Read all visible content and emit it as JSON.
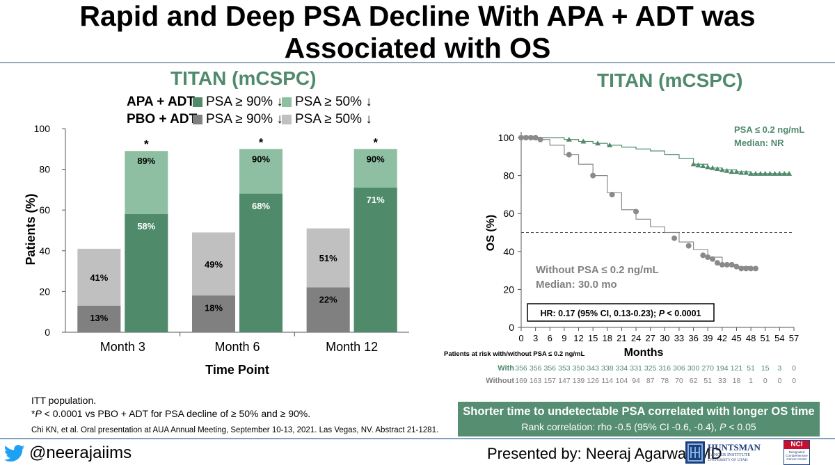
{
  "slide": {
    "title_line1": "Rapid and Deep PSA Decline With APA + ADT was",
    "title_line2": "Associated with OS",
    "left_panel_title": "TITAN (mCSPC)",
    "right_panel_title": "TITAN (mCSPC)",
    "footnote_line1": "ITT population.",
    "footnote_line2_prefix": "*",
    "footnote_line2_p": "P",
    "footnote_line2_rest": " < 0.0001 vs PBO + ADT for PSA decline of ≥ 50% and ≥ 90%.",
    "citation": "Chi KN, et al. Oral presentation at AUA Annual Meeting, September 10-13, 2021. Las Vegas, NV. Abstract 21-1281.",
    "callout_line1": "Shorter time to undetectable PSA correlated with longer OS time",
    "callout_line2_a": "Rank correlation: rho -0.5 (95% CI -0.6, -0.4), ",
    "callout_line2_p": "P",
    "callout_line2_b": " < 0.05",
    "twitter_handle": "@neerajaiims",
    "presenter": "Presented by: Neeraj Agarwal, MD",
    "logo_text": "HUNTSMAN",
    "logo_sub1": "CANCER INSTITUTE",
    "logo_sub2": "UNIVERSITY OF UTAH",
    "nci_text": "NCI",
    "nci_sub": "Designated Comprehensive Cancer Center"
  },
  "colors": {
    "apa_deep": "#4f8a6b",
    "apa_50": "#8fbfa3",
    "pbo_deep": "#808080",
    "pbo_50": "#c0c0c0",
    "title_green": "#4f8a6b",
    "km_grey": "#8a8a8a"
  },
  "chart_data": [
    {
      "type": "bar",
      "subtype": "stacked-overlay",
      "legend": {
        "apa_label": "APA + ADT:",
        "pbo_label": "PBO + ADT:",
        "psa90": "PSA ≥ 90% ↓",
        "psa50": "PSA ≥ 50% ↓"
      },
      "categories": [
        "Month 3",
        "Month 6",
        "Month 12"
      ],
      "series": [
        {
          "name": "PBO + ADT PSA ≥ 50%",
          "values": [
            41,
            49,
            51
          ],
          "labels": [
            "41%",
            "49%",
            "51%"
          ]
        },
        {
          "name": "PBO + ADT PSA ≥ 90%",
          "values": [
            13,
            18,
            22
          ],
          "labels": [
            "13%",
            "18%",
            "22%"
          ]
        },
        {
          "name": "APA + ADT PSA ≥ 50%",
          "values": [
            89,
            90,
            90
          ],
          "labels": [
            "89%",
            "90%",
            "90%"
          ]
        },
        {
          "name": "APA + ADT PSA ≥ 90%",
          "values": [
            58,
            68,
            71
          ],
          "labels": [
            "58%",
            "68%",
            "71%"
          ]
        }
      ],
      "significance": [
        "*",
        "*",
        "*"
      ],
      "ylabel": "Patients (%)",
      "xlabel": "Time Point",
      "ylim": [
        0,
        100
      ],
      "yticks": [
        "0",
        "20",
        "40",
        "60",
        "80",
        "100"
      ]
    },
    {
      "type": "line",
      "subtype": "kaplan-meier",
      "xlabel": "Months",
      "ylabel": "OS (%)",
      "xlim": [
        0,
        57
      ],
      "ylim": [
        0,
        100
      ],
      "xticks": [
        "0",
        "3",
        "6",
        "9",
        "12",
        "15",
        "18",
        "21",
        "24",
        "27",
        "30",
        "33",
        "36",
        "39",
        "42",
        "45",
        "48",
        "51",
        "54",
        "57"
      ],
      "yticks": [
        "0",
        "20",
        "40",
        "60",
        "80",
        "100"
      ],
      "reference_line_y": 50,
      "series": [
        {
          "name": "PSA ≤ 0.2 ng/mL",
          "median_label": "Median: NR",
          "x": [
            0,
            3,
            6,
            9,
            12,
            15,
            18,
            21,
            24,
            27,
            30,
            33,
            36,
            39,
            42,
            45,
            48,
            51,
            54,
            56
          ],
          "y": [
            100,
            100,
            100,
            99,
            98,
            97,
            96,
            95,
            94,
            93,
            91,
            89,
            86,
            84,
            83,
            82,
            81,
            81,
            81,
            81
          ],
          "censor_x": [
            3,
            10,
            13,
            16,
            18.5,
            36,
            37,
            38,
            39,
            40,
            41,
            42,
            43,
            44,
            45,
            46,
            47,
            48,
            49,
            50,
            51,
            52,
            53,
            54,
            55,
            56
          ],
          "censor_y": [
            100,
            99,
            98,
            97,
            96,
            86,
            85.5,
            85,
            84.5,
            84,
            83.5,
            83,
            82.5,
            82,
            82,
            81.5,
            81.5,
            81,
            81,
            81,
            81,
            81,
            81,
            81,
            81,
            81
          ]
        },
        {
          "name": "Without PSA ≤ 0.2 ng/mL",
          "median_label": "Median: 30.0 mo",
          "x": [
            0,
            3,
            6,
            9,
            12,
            15,
            18,
            21,
            24,
            27,
            30,
            33,
            36,
            39,
            42,
            45,
            48
          ],
          "y": [
            100,
            99,
            96,
            91,
            86,
            80,
            71,
            62,
            57,
            53,
            50,
            45,
            41,
            37,
            33,
            32,
            31
          ],
          "censor_x": [
            0,
            1,
            2,
            3,
            4,
            10,
            15,
            19,
            24,
            32,
            35,
            38,
            39,
            40,
            41,
            42,
            43,
            44,
            45,
            46,
            47,
            48,
            49
          ],
          "censor_y": [
            100,
            100,
            100,
            100,
            99,
            91,
            80,
            70,
            61,
            47,
            43,
            38,
            37,
            36,
            34,
            33,
            33,
            33,
            32,
            31,
            31,
            31,
            31
          ]
        }
      ],
      "hr_text": "HR: 0.17 (95% CI, 0.13-0.23); ",
      "hr_p": "P",
      "hr_rest": " < 0.0001",
      "risk_table": {
        "title": "Patients at risk with/without PSA ≤ 0.2 ng/mL",
        "rows": [
          {
            "label": "With",
            "values": [
              "356",
              "356",
              "356",
              "353",
              "350",
              "343",
              "338",
              "334",
              "331",
              "325",
              "316",
              "306",
              "300",
              "270",
              "194",
              "121",
              "51",
              "15",
              "3",
              "0"
            ]
          },
          {
            "label": "Without",
            "values": [
              "169",
              "163",
              "157",
              "147",
              "139",
              "126",
              "114",
              "104",
              "94",
              "87",
              "78",
              "70",
              "62",
              "51",
              "33",
              "18",
              "1",
              "0",
              "0",
              "0"
            ]
          }
        ]
      }
    }
  ]
}
